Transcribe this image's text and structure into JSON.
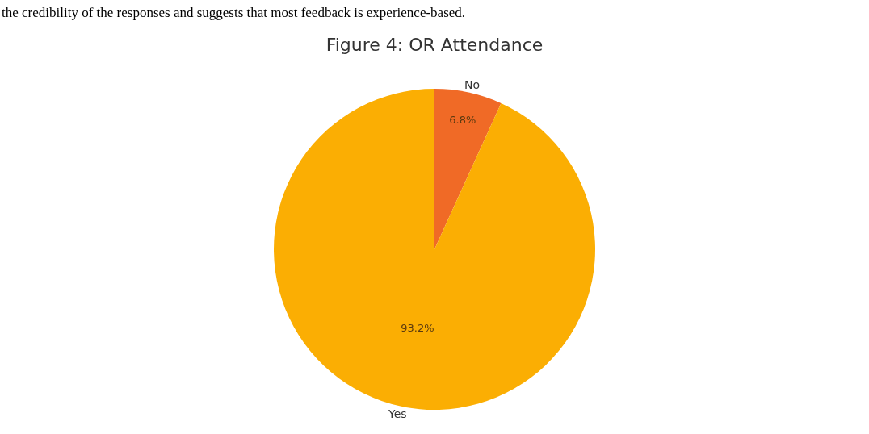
{
  "chart_data": {
    "type": "pie",
    "title": "Figure 4: OR Attendance",
    "categories": [
      "No",
      "Yes"
    ],
    "values": [
      6.8,
      93.2
    ],
    "value_labels": [
      "6.8%",
      "93.2%"
    ],
    "colors": [
      "#f06a26",
      "#fbae03"
    ],
    "annotations": [
      "the credibility of the responses and suggests that most feedback is experience-based."
    ]
  }
}
